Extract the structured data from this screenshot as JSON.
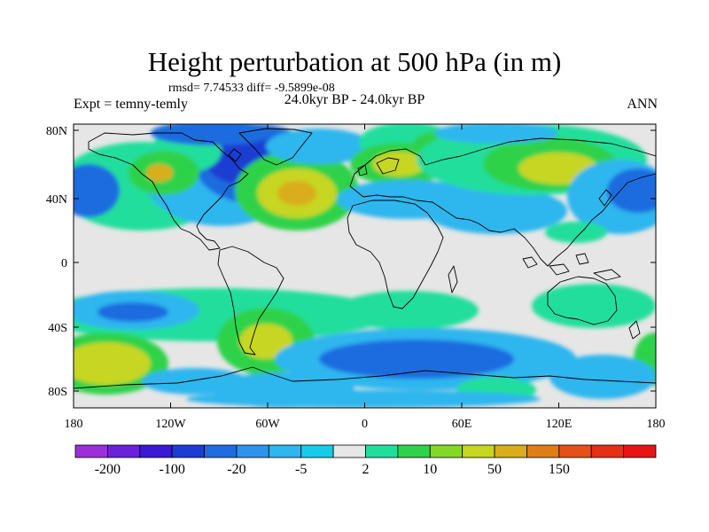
{
  "title": "Height perturbation at 500 hPa (in m)",
  "stats_line": "rmsd= 7.74533  diff= -9.5899e-08",
  "left_label": "Expt = temny-temly",
  "center_label": "24.0kyr BP - 24.0kyr BP",
  "right_label": "ANN",
  "axes": {
    "lat_ticks": [
      "80N",
      "40N",
      "0",
      "40S",
      "80S"
    ],
    "lon_ticks": [
      "180",
      "120W",
      "60W",
      "0",
      "60E",
      "120E",
      "180"
    ]
  },
  "colorbar": {
    "labels": [
      "-200",
      "-100",
      "-20",
      "-5",
      "2",
      "10",
      "50",
      "150"
    ],
    "colors": [
      "#9b30d8",
      "#6a22d9",
      "#3a18d4",
      "#1c3cd2",
      "#1f6ce0",
      "#2f93ea",
      "#2eb6ee",
      "#18cbe8",
      "#e6e6e6",
      "#22de9c",
      "#2fd24a",
      "#84d82a",
      "#c7d622",
      "#d9ad1c",
      "#df7e18",
      "#e4501a",
      "#e52f16",
      "#e61412"
    ]
  }
}
